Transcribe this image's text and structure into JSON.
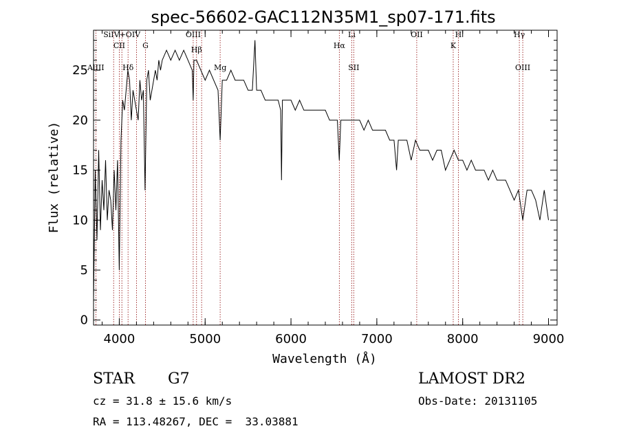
{
  "chart_data": {
    "type": "line",
    "title": "spec-56602-GAC112N35M1_sp07-171.fits",
    "xlabel": "Wavelength (Å)",
    "ylabel": "Flux (relative)",
    "xlim": [
      3700,
      9100
    ],
    "ylim": [
      -0.5,
      29
    ],
    "x_ticks": [
      4000,
      5000,
      6000,
      7000,
      8000,
      9000
    ],
    "y_ticks": [
      0,
      5,
      10,
      15,
      20,
      25
    ],
    "grid": false,
    "line_color": "#000000",
    "marker_color": "#8b0000",
    "series": [
      {
        "x": [
          3700,
          3720,
          3740,
          3760,
          3780,
          3800,
          3820,
          3840,
          3860,
          3880,
          3900,
          3920,
          3940,
          3960,
          3980,
          4000,
          4020,
          4040,
          4060,
          4080,
          4100,
          4120,
          4140,
          4160,
          4180,
          4200,
          4220,
          4240,
          4260,
          4280,
          4300,
          4320,
          4340,
          4360,
          4380,
          4400,
          4420,
          4440,
          4460,
          4480,
          4500,
          4550,
          4600,
          4650,
          4700,
          4750,
          4800,
          4850,
          4861,
          4870,
          4900,
          4950,
          5000,
          5050,
          5100,
          5150,
          5175,
          5200,
          5250,
          5300,
          5350,
          5400,
          5450,
          5500,
          5550,
          5580,
          5600,
          5650,
          5700,
          5750,
          5800,
          5850,
          5880,
          5890,
          5900,
          5950,
          6000,
          6050,
          6100,
          6150,
          6200,
          6250,
          6300,
          6350,
          6400,
          6450,
          6500,
          6540,
          6563,
          6580,
          6600,
          6650,
          6700,
          6750,
          6800,
          6850,
          6900,
          6950,
          7000,
          7050,
          7100,
          7150,
          7200,
          7230,
          7250,
          7300,
          7350,
          7400,
          7450,
          7500,
          7550,
          7600,
          7650,
          7700,
          7750,
          7800,
          7850,
          7900,
          7950,
          8000,
          8050,
          8100,
          8150,
          8200,
          8250,
          8300,
          8350,
          8400,
          8450,
          8500,
          8550,
          8600,
          8650,
          8700,
          8750,
          8800,
          8850,
          8900,
          8950,
          9000
        ],
        "y": [
          2,
          15,
          8,
          17,
          9,
          14,
          11,
          16,
          10,
          13,
          12,
          9,
          15,
          11,
          16,
          5,
          18,
          22,
          21,
          23,
          25,
          24,
          20,
          23,
          22,
          21,
          20,
          24,
          22,
          23,
          13,
          24,
          25,
          22,
          23,
          24,
          25,
          24,
          26,
          25,
          26,
          27,
          26,
          27,
          26,
          27,
          26,
          25,
          22,
          26,
          26,
          25,
          24,
          25,
          24,
          23,
          18,
          24,
          24,
          25,
          24,
          24,
          24,
          23,
          23,
          28,
          23,
          23,
          22,
          22,
          22,
          22,
          21,
          14,
          22,
          22,
          22,
          21,
          22,
          21,
          21,
          21,
          21,
          21,
          21,
          20,
          20,
          20,
          16,
          20,
          20,
          20,
          20,
          20,
          20,
          19,
          20,
          19,
          19,
          19,
          19,
          18,
          18,
          15,
          18,
          18,
          18,
          16,
          18,
          17,
          17,
          17,
          16,
          17,
          17,
          15,
          16,
          17,
          16,
          16,
          15,
          16,
          15,
          15,
          15,
          14,
          15,
          14,
          14,
          14,
          13,
          12,
          13,
          10,
          13,
          13,
          12,
          10,
          13,
          10
        ]
      }
    ],
    "lines": [
      {
        "w": 3727,
        "labels": [
          "AlIII"
        ],
        "y": [
          25
        ]
      },
      {
        "w": 3934,
        "labels": [],
        "y": []
      },
      {
        "w": 4000,
        "labels": [
          "CII"
        ],
        "y": [
          27.2
        ]
      },
      {
        "w": 4030,
        "labels": [
          "SiIV+OIV"
        ],
        "y": [
          28.3
        ]
      },
      {
        "w": 4102,
        "labels": [
          "Hδ"
        ],
        "y": [
          25
        ]
      },
      {
        "w": 4200,
        "labels": [],
        "y": []
      },
      {
        "w": 4305,
        "labels": [
          "G"
        ],
        "y": [
          27.2
        ]
      },
      {
        "w": 4861,
        "labels": [
          "OIII"
        ],
        "y": [
          28.3
        ]
      },
      {
        "w": 4900,
        "labels": [
          "Hβ"
        ],
        "y": [
          26.8
        ]
      },
      {
        "w": 4959,
        "labels": [],
        "y": []
      },
      {
        "w": 5175,
        "labels": [
          "Mg"
        ],
        "y": [
          25
        ]
      },
      {
        "w": 6563,
        "labels": [
          "Hα"
        ],
        "y": [
          27.2
        ]
      },
      {
        "w": 6708,
        "labels": [
          "Li"
        ],
        "y": [
          28.3
        ]
      },
      {
        "w": 6731,
        "labels": [
          "SII"
        ],
        "y": [
          25
        ]
      },
      {
        "w": 7465,
        "labels": [
          "OII"
        ],
        "y": [
          28.3
        ]
      },
      {
        "w": 7890,
        "labels": [
          "K"
        ],
        "y": [
          27.2
        ]
      },
      {
        "w": 7950,
        "labels": [
          "H"
        ],
        "y": [
          28.3
        ]
      },
      {
        "w": 8660,
        "labels": [
          "Hγ"
        ],
        "y": [
          28.3
        ]
      },
      {
        "w": 8700,
        "labels": [
          "OIII"
        ],
        "y": [
          25
        ]
      }
    ]
  },
  "info": {
    "class": "STAR",
    "subclass": "G7",
    "survey": "LAMOST DR2",
    "cz": "cz = 31.8 ± 15.6 km/s",
    "obs_date": "Obs-Date: 20131105",
    "coords": "RA = 113.48267, DEC =  33.03881"
  }
}
